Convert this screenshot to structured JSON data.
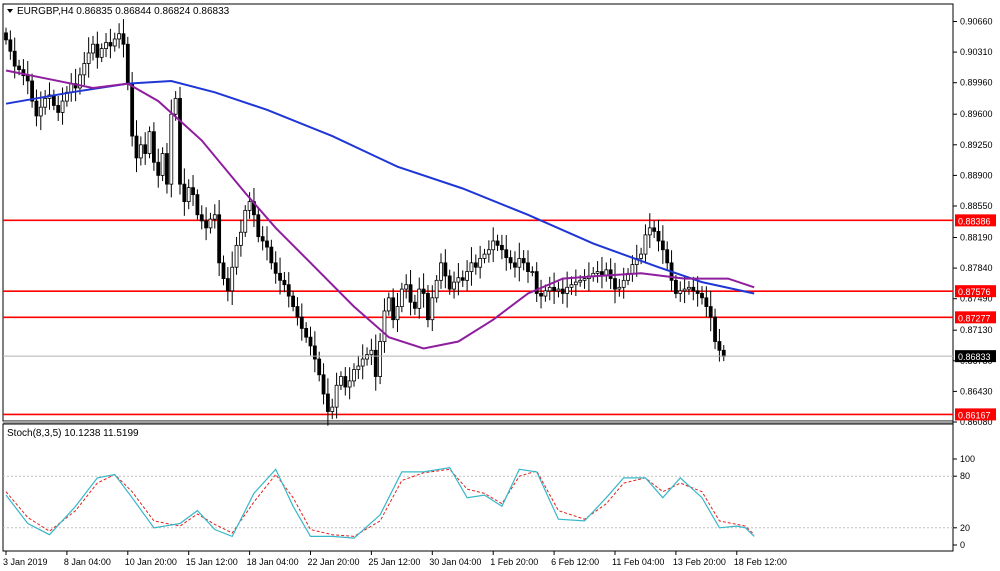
{
  "header": {
    "symbol_title": "EURGBP,H4  0.86835 0.86844 0.86824 0.86833",
    "stoch_title": "Stoch(8,3,5) 10.1238 11.5199"
  },
  "colors": {
    "background": "#ffffff",
    "candle": "#000000",
    "ma_fast": "#8e1e9e",
    "ma_slow": "#1f36d6",
    "level_lines": "#ff0000",
    "stoch_main": "#36b7c9",
    "stoch_signal": "#e02020",
    "grid_dotted": "#bfbfbf"
  },
  "chart_data": [
    {
      "type": "candlestick",
      "symbol": "EURGBP",
      "timeframe": "H4",
      "ohlc_current": {
        "open": 0.86835,
        "high": 0.86844,
        "low": 0.86824,
        "close": 0.86833
      },
      "ylim": [
        0.8608,
        0.907
      ],
      "y_ticks": [
        "0.90660",
        "0.90310",
        "0.89960",
        "0.89600",
        "0.89250",
        "0.88900",
        "0.88550",
        "0.88190",
        "0.87840",
        "0.87490",
        "0.87130",
        "0.86780",
        "0.86430",
        "0.86080"
      ],
      "y_tick_values": [
        0.9066,
        0.9031,
        0.8996,
        0.896,
        0.8925,
        0.889,
        0.8855,
        0.8819,
        0.8784,
        0.8749,
        0.8713,
        0.8678,
        0.8643,
        0.8608
      ],
      "x_ticks": [
        "3 Jan 2019",
        "8 Jan 04:00",
        "10 Jan 20:00",
        "15 Jan 12:00",
        "18 Jan 04:00",
        "22 Jan 20:00",
        "25 Jan 12:00",
        "30 Jan 04:00",
        "1 Feb 20:00",
        "6 Feb 12:00",
        "11 Feb 04:00",
        "13 Feb 20:00",
        "18 Feb 12:00"
      ],
      "x_tick_index": [
        0,
        14,
        28,
        42,
        56,
        70,
        84,
        98,
        112,
        126,
        140,
        154,
        168
      ],
      "closes": [
        0.9045,
        0.9032,
        0.9015,
        0.9011,
        0.9004,
        0.8998,
        0.8975,
        0.8958,
        0.8968,
        0.8978,
        0.8982,
        0.897,
        0.8962,
        0.8975,
        0.8985,
        0.8995,
        0.899,
        0.9005,
        0.9018,
        0.903,
        0.904,
        0.9025,
        0.9035,
        0.9042,
        0.9038,
        0.9046,
        0.9052,
        0.904,
        0.8995,
        0.8935,
        0.891,
        0.8925,
        0.8915,
        0.894,
        0.8905,
        0.889,
        0.8915,
        0.888,
        0.896,
        0.8978,
        0.888,
        0.886,
        0.8876,
        0.8868,
        0.8845,
        0.8838,
        0.883,
        0.884,
        0.8845,
        0.879,
        0.8772,
        0.8758,
        0.8785,
        0.881,
        0.8825,
        0.885,
        0.886,
        0.8845,
        0.882,
        0.8815,
        0.8808,
        0.879,
        0.8778,
        0.877,
        0.8765,
        0.8752,
        0.874,
        0.8728,
        0.8715,
        0.8705,
        0.8695,
        0.868,
        0.8662,
        0.864,
        0.862,
        0.8625,
        0.865,
        0.866,
        0.8648,
        0.8655,
        0.8668,
        0.8672,
        0.868,
        0.8685,
        0.869,
        0.866,
        0.87,
        0.8735,
        0.875,
        0.8725,
        0.874,
        0.876,
        0.8765,
        0.8745,
        0.8738,
        0.876,
        0.8755,
        0.8725,
        0.875,
        0.877,
        0.879,
        0.8775,
        0.876,
        0.8768,
        0.8773,
        0.877,
        0.878,
        0.879,
        0.8785,
        0.8795,
        0.88,
        0.8805,
        0.8815,
        0.881,
        0.8805,
        0.8796,
        0.879,
        0.8785,
        0.8795,
        0.879,
        0.878,
        0.878,
        0.8755,
        0.8752,
        0.8758,
        0.8762,
        0.8758,
        0.876,
        0.8755,
        0.8762,
        0.8765,
        0.8768,
        0.877,
        0.8772,
        0.8775,
        0.8778,
        0.878,
        0.8776,
        0.8782,
        0.8772,
        0.876,
        0.8762,
        0.877,
        0.8778,
        0.8788,
        0.8795,
        0.88,
        0.8822,
        0.883,
        0.8826,
        0.8815,
        0.8805,
        0.879,
        0.877,
        0.8755,
        0.8758,
        0.876,
        0.8762,
        0.8758,
        0.8755,
        0.875,
        0.874,
        0.8728,
        0.87,
        0.869,
        0.8683
      ],
      "levels": [
        {
          "value": 0.88386,
          "label": "0.88386"
        },
        {
          "value": 0.87576,
          "label": "0.87576"
        },
        {
          "value": 0.87277,
          "label": "0.87277"
        },
        {
          "value": 0.86167,
          "label": "0.86167"
        }
      ],
      "current_price": {
        "value": 0.86833,
        "label": "0.86833"
      },
      "ma_fast": [
        [
          0,
          0.901
        ],
        [
          10,
          0.9
        ],
        [
          20,
          0.899
        ],
        [
          28,
          0.8995
        ],
        [
          35,
          0.8975
        ],
        [
          45,
          0.893
        ],
        [
          55,
          0.887
        ],
        [
          62,
          0.883
        ],
        [
          70,
          0.879
        ],
        [
          80,
          0.874
        ],
        [
          88,
          0.8705
        ],
        [
          96,
          0.8692
        ],
        [
          104,
          0.87
        ],
        [
          112,
          0.8725
        ],
        [
          120,
          0.8755
        ],
        [
          128,
          0.8772
        ],
        [
          136,
          0.8775
        ],
        [
          146,
          0.8778
        ],
        [
          156,
          0.8772
        ],
        [
          166,
          0.8772
        ],
        [
          172,
          0.8762
        ]
      ],
      "ma_slow": [
        [
          0,
          0.8972
        ],
        [
          15,
          0.8985
        ],
        [
          28,
          0.8995
        ],
        [
          38,
          0.8998
        ],
        [
          48,
          0.8985
        ],
        [
          60,
          0.8965
        ],
        [
          75,
          0.8935
        ],
        [
          90,
          0.89
        ],
        [
          105,
          0.8875
        ],
        [
          120,
          0.8845
        ],
        [
          135,
          0.8812
        ],
        [
          150,
          0.8785
        ],
        [
          160,
          0.8768
        ],
        [
          172,
          0.8755
        ]
      ]
    },
    {
      "type": "line",
      "name": "Stoch(8,3,5)",
      "main_value": 10.1238,
      "signal_value": 11.5199,
      "ylim": [
        0,
        100
      ],
      "y_ticks": [
        "100",
        "80",
        "20",
        "0"
      ],
      "y_tick_values": [
        100,
        80,
        20,
        0
      ],
      "levels": [
        80,
        20
      ],
      "main": [
        [
          0,
          58
        ],
        [
          5,
          25
        ],
        [
          10,
          12
        ],
        [
          16,
          45
        ],
        [
          21,
          78
        ],
        [
          25,
          82
        ],
        [
          29,
          55
        ],
        [
          34,
          20
        ],
        [
          40,
          25
        ],
        [
          44,
          40
        ],
        [
          48,
          18
        ],
        [
          52,
          10
        ],
        [
          57,
          60
        ],
        [
          62,
          88
        ],
        [
          66,
          45
        ],
        [
          70,
          10
        ],
        [
          75,
          10
        ],
        [
          80,
          8
        ],
        [
          86,
          35
        ],
        [
          91,
          85
        ],
        [
          96,
          85
        ],
        [
          102,
          90
        ],
        [
          106,
          55
        ],
        [
          110,
          58
        ],
        [
          114,
          45
        ],
        [
          118,
          88
        ],
        [
          122,
          85
        ],
        [
          127,
          30
        ],
        [
          133,
          28
        ],
        [
          138,
          55
        ],
        [
          142,
          78
        ],
        [
          147,
          78
        ],
        [
          151,
          55
        ],
        [
          155,
          78
        ],
        [
          160,
          55
        ],
        [
          164,
          20
        ],
        [
          168,
          22
        ],
        [
          170,
          20
        ],
        [
          172,
          10
        ]
      ],
      "signal": [
        [
          0,
          62
        ],
        [
          5,
          32
        ],
        [
          10,
          16
        ],
        [
          16,
          40
        ],
        [
          21,
          72
        ],
        [
          25,
          82
        ],
        [
          29,
          62
        ],
        [
          34,
          28
        ],
        [
          40,
          22
        ],
        [
          44,
          36
        ],
        [
          48,
          24
        ],
        [
          52,
          14
        ],
        [
          57,
          50
        ],
        [
          62,
          82
        ],
        [
          66,
          55
        ],
        [
          70,
          18
        ],
        [
          75,
          12
        ],
        [
          80,
          10
        ],
        [
          86,
          28
        ],
        [
          91,
          75
        ],
        [
          96,
          84
        ],
        [
          102,
          88
        ],
        [
          106,
          65
        ],
        [
          110,
          60
        ],
        [
          114,
          48
        ],
        [
          118,
          80
        ],
        [
          122,
          86
        ],
        [
          127,
          40
        ],
        [
          133,
          30
        ],
        [
          138,
          48
        ],
        [
          142,
          72
        ],
        [
          147,
          78
        ],
        [
          151,
          62
        ],
        [
          155,
          72
        ],
        [
          160,
          62
        ],
        [
          164,
          28
        ],
        [
          168,
          24
        ],
        [
          170,
          22
        ],
        [
          172,
          12
        ]
      ]
    }
  ]
}
